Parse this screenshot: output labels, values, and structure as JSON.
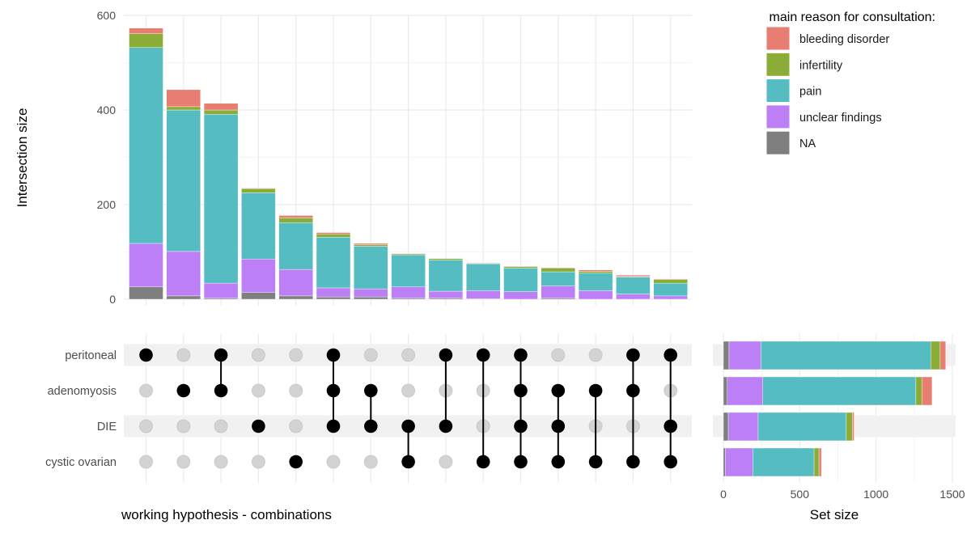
{
  "chart_data": {
    "type": "upset",
    "colors": {
      "bleeding disorder": "#E87E72",
      "infertility": "#8BAD38",
      "pain": "#55BCC2",
      "unclear findings": "#BC7FF6",
      "NA": "#7F7F7F",
      "dot_active": "#000000",
      "dot_inactive": "#D3D3D3",
      "band": "#F1F1F1",
      "grid": "#EBEBEB"
    },
    "legend": {
      "title": "main reason for consultation:",
      "position": "top-right",
      "entries": [
        "bleeding disorder",
        "infertility",
        "pain",
        "unclear findings",
        "NA"
      ]
    },
    "stack_order_bottom_to_top": [
      "NA",
      "unclear findings",
      "pain",
      "infertility",
      "bleeding disorder"
    ],
    "intersection_panel": {
      "ylabel": "Intersection size",
      "ylim": [
        0,
        600
      ],
      "yticks": [
        0,
        200,
        400,
        600
      ],
      "grid": true
    },
    "matrix": {
      "xlabel": "working hypothesis - combinations",
      "sets": [
        "peritoneal",
        "adenomyosis",
        "DIE",
        "cystic ovarian"
      ]
    },
    "intersections": [
      {
        "sets": [
          "peritoneal"
        ],
        "values": {
          "NA": 26,
          "unclear findings": 92,
          "pain": 414,
          "infertility": 29,
          "bleeding disorder": 12
        }
      },
      {
        "sets": [
          "adenomyosis"
        ],
        "values": {
          "NA": 7,
          "unclear findings": 94,
          "pain": 299,
          "infertility": 7,
          "bleeding disorder": 36
        }
      },
      {
        "sets": [
          "peritoneal",
          "adenomyosis"
        ],
        "values": {
          "NA": 2,
          "unclear findings": 32,
          "pain": 357,
          "infertility": 9,
          "bleeding disorder": 14
        }
      },
      {
        "sets": [
          "DIE"
        ],
        "values": {
          "NA": 14,
          "unclear findings": 71,
          "pain": 140,
          "infertility": 9,
          "bleeding disorder": 1
        }
      },
      {
        "sets": [
          "cystic ovarian"
        ],
        "values": {
          "NA": 7,
          "unclear findings": 56,
          "pain": 99,
          "infertility": 10,
          "bleeding disorder": 5
        }
      },
      {
        "sets": [
          "peritoneal",
          "adenomyosis",
          "DIE"
        ],
        "values": {
          "NA": 5,
          "unclear findings": 19,
          "pain": 107,
          "infertility": 7,
          "bleeding disorder": 3
        }
      },
      {
        "sets": [
          "adenomyosis",
          "DIE"
        ],
        "values": {
          "NA": 5,
          "unclear findings": 17,
          "pain": 90,
          "infertility": 3,
          "bleeding disorder": 3
        }
      },
      {
        "sets": [
          "DIE",
          "cystic ovarian"
        ],
        "values": {
          "NA": 2,
          "unclear findings": 24,
          "pain": 68,
          "infertility": 2,
          "bleeding disorder": 1
        }
      },
      {
        "sets": [
          "peritoneal",
          "DIE"
        ],
        "values": {
          "NA": 2,
          "unclear findings": 15,
          "pain": 66,
          "infertility": 3,
          "bleeding disorder": 0
        }
      },
      {
        "sets": [
          "peritoneal",
          "cystic ovarian"
        ],
        "values": {
          "NA": 1,
          "unclear findings": 17,
          "pain": 57,
          "infertility": 1,
          "bleeding disorder": 1
        }
      },
      {
        "sets": [
          "peritoneal",
          "adenomyosis",
          "DIE",
          "cystic ovarian"
        ],
        "values": {
          "NA": 0,
          "unclear findings": 16,
          "pain": 50,
          "infertility": 3,
          "bleeding disorder": 1
        }
      },
      {
        "sets": [
          "adenomyosis",
          "DIE",
          "cystic ovarian"
        ],
        "values": {
          "NA": 2,
          "unclear findings": 26,
          "pain": 30,
          "infertility": 8,
          "bleeding disorder": 1
        }
      },
      {
        "sets": [
          "adenomyosis",
          "cystic ovarian"
        ],
        "values": {
          "NA": 0,
          "unclear findings": 18,
          "pain": 37,
          "infertility": 4,
          "bleeding disorder": 3
        }
      },
      {
        "sets": [
          "peritoneal",
          "adenomyosis",
          "cystic ovarian"
        ],
        "values": {
          "NA": 0,
          "unclear findings": 11,
          "pain": 36,
          "infertility": 1,
          "bleeding disorder": 3
        }
      },
      {
        "sets": [
          "peritoneal",
          "DIE",
          "cystic ovarian"
        ],
        "values": {
          "NA": 0,
          "unclear findings": 7,
          "pain": 27,
          "infertility": 8,
          "bleeding disorder": 1
        }
      }
    ],
    "set_size_panel": {
      "xlabel": "Set size",
      "xlim": [
        0,
        1500
      ],
      "xticks": [
        0,
        500,
        1000,
        1500
      ],
      "grid": true,
      "sets": [
        {
          "name": "peritoneal",
          "values": {
            "NA": 37,
            "unclear findings": 209,
            "pain": 1112,
            "infertility": 62,
            "bleeding disorder": 36
          }
        },
        {
          "name": "adenomyosis",
          "values": {
            "NA": 25,
            "unclear findings": 233,
            "pain": 1003,
            "infertility": 39,
            "bleeding disorder": 67
          }
        },
        {
          "name": "DIE",
          "values": {
            "NA": 32,
            "unclear findings": 196,
            "pain": 577,
            "infertility": 40,
            "bleeding disorder": 11
          }
        },
        {
          "name": "cystic ovarian",
          "values": {
            "NA": 12,
            "unclear findings": 181,
            "pain": 401,
            "infertility": 32,
            "bleeding disorder": 16
          }
        }
      ]
    }
  }
}
